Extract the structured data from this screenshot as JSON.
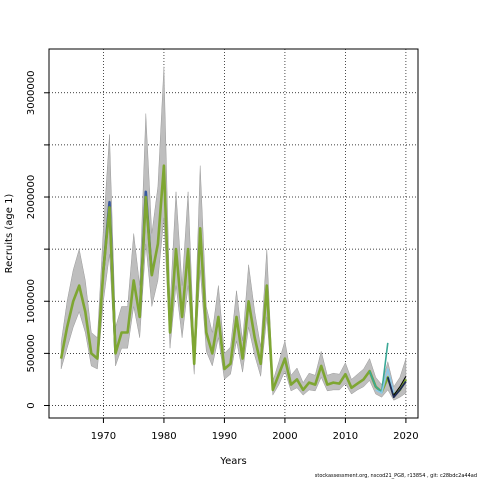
{
  "chart_data": {
    "type": "line",
    "xlabel": "Years",
    "ylabel": "Recruits (age 1)",
    "xlim": [
      1961,
      2022
    ],
    "ylim": [
      -120000,
      3420000
    ],
    "x_ticks": [
      1970,
      1980,
      1990,
      2000,
      2010,
      2020
    ],
    "y_ticks": [
      0,
      500000,
      1000000,
      2000000,
      3000000
    ],
    "y_ticks_unlabeled": [
      1500000,
      2500000
    ],
    "grid": true,
    "colors": {
      "band": "#bebebe",
      "main_line": "#7ea632",
      "blue_accent": "#3a5a9e",
      "teal": "#3aa896",
      "light_blue": "#8cc8e8",
      "dark_navy": "#1e2a55",
      "black": "#000000"
    },
    "series": [
      {
        "x": [
          1963,
          1964,
          1965,
          1966,
          1967,
          1968,
          1969,
          1970,
          1971,
          1972,
          1973,
          1974,
          1975,
          1976,
          1977,
          1978,
          1979,
          1980,
          1981,
          1982,
          1983,
          1984,
          1985,
          1986,
          1987,
          1988,
          1989,
          1990,
          1991,
          1992,
          1993,
          1994,
          1995,
          1996,
          1997,
          1998,
          1999,
          2000,
          2001,
          2002,
          2003,
          2004,
          2005,
          2006,
          2007,
          2008,
          2009,
          2010,
          2011,
          2012,
          2013,
          2014,
          2015,
          2016,
          2017,
          2018,
          2019,
          2020
        ],
        "values": [
          450000,
          750000,
          1000000,
          1150000,
          900000,
          500000,
          450000,
          1300000,
          1900000,
          500000,
          700000,
          700000,
          1200000,
          850000,
          2000000,
          1250000,
          1550000,
          2300000,
          700000,
          1500000,
          850000,
          1500000,
          400000,
          1700000,
          700000,
          500000,
          850000,
          350000,
          400000,
          850000,
          450000,
          1000000,
          650000,
          400000,
          1150000,
          150000,
          300000,
          450000,
          200000,
          250000,
          150000,
          220000,
          200000,
          380000,
          200000,
          220000,
          210000,
          300000,
          170000,
          210000,
          250000,
          330000,
          180000,
          130000,
          270000,
          100000,
          150000,
          250000
        ],
        "lower": [
          350000,
          550000,
          750000,
          900000,
          700000,
          380000,
          350000,
          1000000,
          1450000,
          380000,
          550000,
          550000,
          950000,
          650000,
          1550000,
          950000,
          1200000,
          1800000,
          550000,
          1150000,
          650000,
          1150000,
          300000,
          1300000,
          520000,
          380000,
          650000,
          250000,
          300000,
          620000,
          320000,
          750000,
          480000,
          280000,
          850000,
          100000,
          200000,
          330000,
          140000,
          170000,
          100000,
          150000,
          140000,
          270000,
          140000,
          150000,
          150000,
          210000,
          110000,
          150000,
          180000,
          240000,
          110000,
          80000,
          150000,
          50000,
          80000,
          120000
        ],
        "upper": [
          600000,
          1000000,
          1300000,
          1500000,
          1200000,
          700000,
          650000,
          1700000,
          2600000,
          750000,
          950000,
          950000,
          1650000,
          1150000,
          2800000,
          1650000,
          2100000,
          3250000,
          950000,
          2050000,
          1150000,
          2050000,
          550000,
          2300000,
          950000,
          700000,
          1150000,
          500000,
          560000,
          1100000,
          620000,
          1350000,
          900000,
          560000,
          1500000,
          230000,
          420000,
          620000,
          290000,
          360000,
          220000,
          310000,
          290000,
          520000,
          290000,
          310000,
          300000,
          410000,
          250000,
          300000,
          350000,
          450000,
          270000,
          200000,
          420000,
          180000,
          270000,
          450000
        ]
      },
      {
        "x": [
          1970,
          1971,
          1972
        ],
        "values": [
          1300000,
          1950000,
          500000
        ]
      },
      {
        "x": [
          1976,
          1977,
          1978
        ],
        "values": [
          850000,
          2050000,
          1250000
        ]
      },
      {
        "x": [
          2014,
          2015,
          2016,
          2017
        ],
        "values": [
          330000,
          180000,
          130000,
          600000
        ]
      },
      {
        "x": [
          2015,
          2016,
          2017,
          2018
        ],
        "values": [
          150000,
          120000,
          350000,
          120000
        ]
      },
      {
        "x": [
          2017,
          2018,
          2019,
          2020
        ],
        "values": [
          270000,
          80000,
          150000,
          230000
        ]
      },
      {
        "x": [
          2018,
          2019,
          2020
        ],
        "values": [
          100000,
          180000,
          280000
        ]
      }
    ]
  },
  "footer": "stockassessment.org, nscod21_PG8, r13854 , git: c28bdc2a44ad"
}
